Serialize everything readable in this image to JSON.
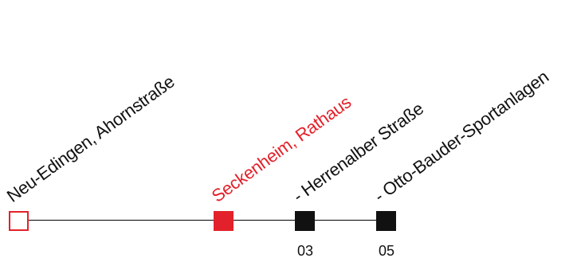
{
  "route": {
    "stops": [
      {
        "label": "Neu-Edingen, Ahornstraße",
        "number": ""
      },
      {
        "label": "Seckenheim, Rathaus",
        "number": ""
      },
      {
        "label": "- Herrenalber Straße",
        "number": "03"
      },
      {
        "label": "- Otto-Bauder-Sportanlagen",
        "number": "05"
      }
    ],
    "current_stop": "Seckenheim, Rathaus",
    "colors": {
      "accent": "#e3212a",
      "stop": "#111111",
      "line": "#000000",
      "background": "#ffffff"
    },
    "icons": [
      "hollow-square-icon",
      "filled-square-icon"
    ]
  }
}
